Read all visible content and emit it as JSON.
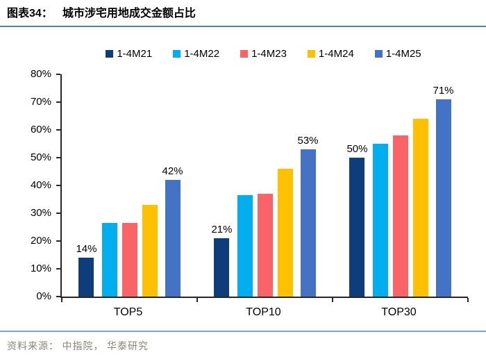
{
  "page": {
    "title_prefix": "图表34：",
    "title": "城市涉宅用地成交金额占比",
    "source_note": "资料来源： 中指院， 华泰研究",
    "colors": {
      "title_underline": "#4e7dbe",
      "footer_divider": "#85a0ba",
      "footer_text": "#8b8577",
      "axis": "#262626",
      "text": "#000000"
    }
  },
  "chart_data": {
    "type": "bar",
    "title": "城市涉宅用地成交金额占比",
    "categories": [
      "TOP5",
      "TOP10",
      "TOP30"
    ],
    "series": [
      {
        "name": "1-4M21",
        "color": "#0e3d7b",
        "values": [
          14,
          21,
          50
        ],
        "data_labels": [
          "14%",
          "21%",
          "50%"
        ]
      },
      {
        "name": "1-4M22",
        "color": "#00aeef",
        "values": [
          26.5,
          36.5,
          55
        ],
        "data_labels": null
      },
      {
        "name": "1-4M23",
        "color": "#fb6467",
        "values": [
          26.5,
          37,
          58
        ],
        "data_labels": null
      },
      {
        "name": "1-4M24",
        "color": "#ffc000",
        "values": [
          33,
          46,
          64
        ],
        "data_labels": null
      },
      {
        "name": "1-4M25",
        "color": "#4472c4",
        "values": [
          42,
          53,
          71
        ],
        "data_labels": [
          "42%",
          "53%",
          "71%"
        ]
      }
    ],
    "xlabel": "",
    "ylabel": "",
    "ylim": [
      0,
      80
    ],
    "ytick_step": 10,
    "ytick_labels": [
      "0%",
      "10%",
      "20%",
      "30%",
      "40%",
      "50%",
      "60%",
      "70%",
      "80%"
    ],
    "grid": false,
    "legend_position": "top"
  }
}
